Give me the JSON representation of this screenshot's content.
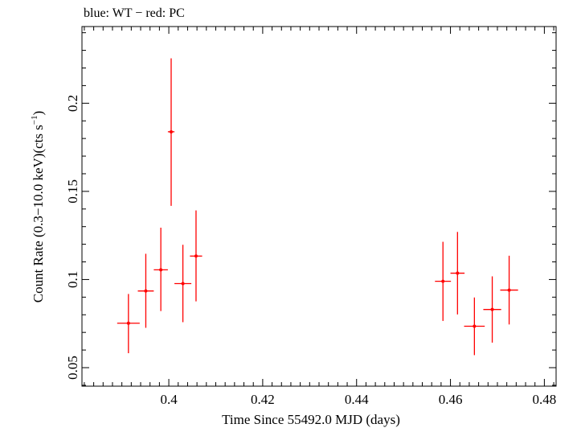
{
  "chart_data": {
    "type": "scatter",
    "title": "blue: WT − red: PC",
    "xlabel": "Time Since 55492.0 MJD (days)",
    "ylabel_main": "Count Rate (0.3−10.0 keV)(cts s",
    "ylabel_sup": "−1",
    "ylabel_close": ")",
    "xlim": [
      0.3815,
      0.4825
    ],
    "ylim": [
      0.0395,
      0.2435
    ],
    "x_ticks": [
      0.4,
      0.42,
      0.44,
      0.46,
      0.48
    ],
    "x_tick_labels": [
      "0.4",
      "0.42",
      "0.44",
      "0.46",
      "0.48"
    ],
    "y_ticks": [
      0.05,
      0.1,
      0.15,
      0.2
    ],
    "y_tick_labels": [
      "0.05",
      "0.1",
      "0.15",
      "0.2"
    ],
    "grid": false,
    "colors": {
      "PC": "#ff0000",
      "axes": "#000000"
    },
    "series": [
      {
        "name": "PC",
        "color": "#ff0000",
        "points": [
          {
            "x": 0.3914,
            "xerr": 0.0024,
            "y": 0.0752,
            "ylo": 0.0582,
            "yhi": 0.0918
          },
          {
            "x": 0.3951,
            "xerr": 0.0017,
            "y": 0.0935,
            "ylo": 0.0726,
            "yhi": 0.1146
          },
          {
            "x": 0.3983,
            "xerr": 0.0015,
            "y": 0.1055,
            "ylo": 0.0821,
            "yhi": 0.1294
          },
          {
            "x": 0.4005,
            "xerr": 0.0007,
            "y": 0.1838,
            "ylo": 0.1418,
            "yhi": 0.2255
          },
          {
            "x": 0.403,
            "xerr": 0.0018,
            "y": 0.0977,
            "ylo": 0.0758,
            "yhi": 0.1197
          },
          {
            "x": 0.4058,
            "xerr": 0.0013,
            "y": 0.1133,
            "ylo": 0.0876,
            "yhi": 0.1392
          },
          {
            "x": 0.4584,
            "xerr": 0.0017,
            "y": 0.099,
            "ylo": 0.0765,
            "yhi": 0.1214
          },
          {
            "x": 0.4615,
            "xerr": 0.0015,
            "y": 0.1036,
            "ylo": 0.0802,
            "yhi": 0.127
          },
          {
            "x": 0.4651,
            "xerr": 0.0022,
            "y": 0.0735,
            "ylo": 0.0571,
            "yhi": 0.0898
          },
          {
            "x": 0.4689,
            "xerr": 0.0019,
            "y": 0.083,
            "ylo": 0.0642,
            "yhi": 0.1018
          },
          {
            "x": 0.4725,
            "xerr": 0.0019,
            "y": 0.094,
            "ylo": 0.0745,
            "yhi": 0.1135
          }
        ]
      }
    ]
  }
}
